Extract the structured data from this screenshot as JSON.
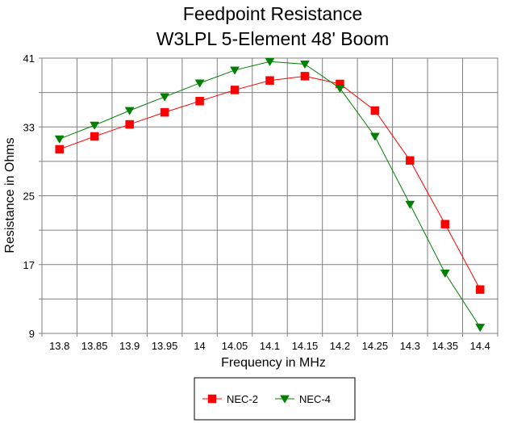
{
  "chart_data": {
    "type": "line",
    "title": "Feedpoint Resistance",
    "subtitle": "W3LPL 5-Element 48' Boom",
    "xlabel": "Frequency in MHz",
    "ylabel": "Resistance in Ohms",
    "x": [
      "13.8",
      "13.85",
      "13.9",
      "13.95",
      "14",
      "14.05",
      "14.1",
      "14.15",
      "14.2",
      "14.25",
      "14.3",
      "14.35",
      "14.4"
    ],
    "ylim": [
      9,
      41
    ],
    "yticks": [
      "9",
      "17",
      "25",
      "33",
      "41"
    ],
    "grid": true,
    "legend_position": "bottom",
    "series": [
      {
        "name": "NEC-2",
        "color": "#ff0000",
        "marker": "square",
        "values": [
          30.4,
          31.9,
          33.3,
          34.7,
          36.0,
          37.3,
          38.4,
          38.9,
          38.0,
          34.9,
          29.1,
          21.7,
          14.1
        ]
      },
      {
        "name": "NEC-4",
        "color": "#008000",
        "marker": "triangle-down",
        "values": [
          31.6,
          33.2,
          34.9,
          36.5,
          38.1,
          39.6,
          40.6,
          40.3,
          37.5,
          31.9,
          24.0,
          16.0,
          9.7
        ]
      }
    ]
  }
}
